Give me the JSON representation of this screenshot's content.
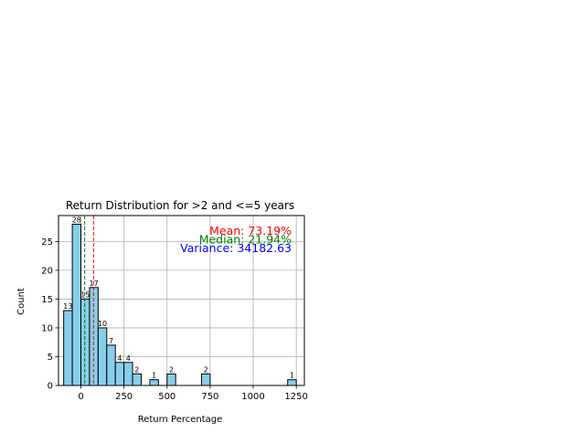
{
  "chart_data": {
    "type": "bar",
    "title": "Return Distribution for >2 and <=5 years",
    "xlabel": "Return Percentage",
    "ylabel": "Count",
    "xlim": [
      -130,
      1297
    ],
    "ylim": [
      0,
      29.5
    ],
    "xticks": [
      0,
      250,
      500,
      750,
      1000,
      1250
    ],
    "yticks": [
      0,
      5,
      10,
      15,
      20,
      25
    ],
    "grid": true,
    "bar_color": "#87CEEB",
    "bar_edge_color": "#000000",
    "bins": [
      {
        "x0": -100,
        "x1": -50,
        "count": 13
      },
      {
        "x0": -50,
        "x1": 0,
        "count": 28
      },
      {
        "x0": 0,
        "x1": 50,
        "count": 15
      },
      {
        "x0": 50,
        "x1": 100,
        "count": 17
      },
      {
        "x0": 100,
        "x1": 150,
        "count": 10
      },
      {
        "x0": 150,
        "x1": 200,
        "count": 7
      },
      {
        "x0": 200,
        "x1": 250,
        "count": 4
      },
      {
        "x0": 250,
        "x1": 300,
        "count": 4
      },
      {
        "x0": 300,
        "x1": 350,
        "count": 2
      },
      {
        "x0": 350,
        "x1": 400,
        "count": 0
      },
      {
        "x0": 400,
        "x1": 450,
        "count": 1
      },
      {
        "x0": 450,
        "x1": 500,
        "count": 0
      },
      {
        "x0": 500,
        "x1": 550,
        "count": 2
      },
      {
        "x0": 550,
        "x1": 600,
        "count": 0
      },
      {
        "x0": 600,
        "x1": 650,
        "count": 0
      },
      {
        "x0": 650,
        "x1": 700,
        "count": 0
      },
      {
        "x0": 700,
        "x1": 750,
        "count": 2
      },
      {
        "x0": 750,
        "x1": 800,
        "count": 0
      },
      {
        "x0": 800,
        "x1": 850,
        "count": 0
      },
      {
        "x0": 850,
        "x1": 900,
        "count": 0
      },
      {
        "x0": 900,
        "x1": 950,
        "count": 0
      },
      {
        "x0": 950,
        "x1": 1000,
        "count": 0
      },
      {
        "x0": 1000,
        "x1": 1050,
        "count": 0
      },
      {
        "x0": 1050,
        "x1": 1100,
        "count": 0
      },
      {
        "x0": 1100,
        "x1": 1150,
        "count": 0
      },
      {
        "x0": 1150,
        "x1": 1200,
        "count": 0
      },
      {
        "x0": 1200,
        "x1": 1250,
        "count": 1
      }
    ],
    "reference_lines": [
      {
        "value": 73.19,
        "color": "#ff0000",
        "style": "dashed"
      },
      {
        "value": 21.94,
        "color": "#008000",
        "style": "dashed"
      }
    ],
    "annotations": [
      {
        "text": "Mean: 73.19%",
        "color": "#ff0000"
      },
      {
        "text": "Median: 21.94%",
        "color": "#008000"
      },
      {
        "text": "Variance: 34182.63",
        "color": "#0000ff"
      }
    ]
  }
}
